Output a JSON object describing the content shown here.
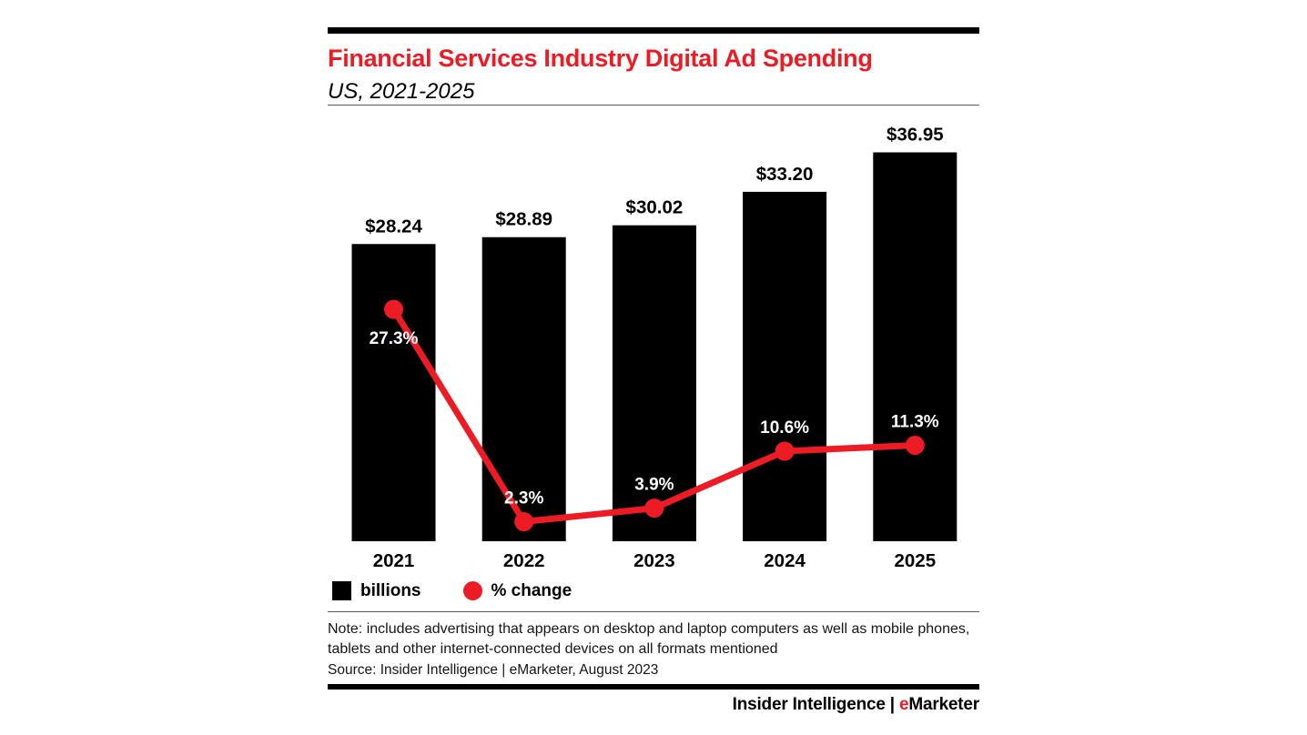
{
  "header": {
    "title": "Financial Services Industry Digital Ad Spending",
    "subtitle": "US, 2021-2025"
  },
  "chart_data": {
    "type": "bar+line",
    "title": "Financial Services Industry Digital Ad Spending",
    "subtitle": "US, 2021-2025",
    "categories": [
      "2021",
      "2022",
      "2023",
      "2024",
      "2025"
    ],
    "series": [
      {
        "name": "billions",
        "type": "bar",
        "values": [
          28.24,
          28.89,
          30.02,
          33.2,
          36.95
        ],
        "labels": [
          "$28.24",
          "$28.89",
          "$30.02",
          "$33.20",
          "$36.95"
        ],
        "color": "#000000"
      },
      {
        "name": "% change",
        "type": "line",
        "values": [
          27.3,
          2.3,
          3.9,
          10.6,
          11.3
        ],
        "labels": [
          "27.3%",
          "2.3%",
          "3.9%",
          "10.6%",
          "11.3%"
        ],
        "color": "#ed1c24"
      }
    ],
    "bar_axis_max": 41.4,
    "line_axis_max": 51.3,
    "grid": false,
    "legend_position": "bottom",
    "colors": {
      "bar": "#000000",
      "line": "#ed1c24",
      "point_label": "#ffffff",
      "value_label": "#000000",
      "category_label": "#000000"
    }
  },
  "legend": {
    "bar_label": "billions",
    "line_label": "% change"
  },
  "footer": {
    "note": "Note: includes advertising that appears on desktop and laptop computers as well as mobile phones, tablets and other internet-connected devices on all formats mentioned",
    "source": "Source: Insider Intelligence | eMarketer, August 2023",
    "branding": {
      "left": "Insider Intelligence",
      "separator": " | ",
      "e": "e",
      "rest": "Marketer"
    }
  },
  "accent_color": "#ed1c24"
}
